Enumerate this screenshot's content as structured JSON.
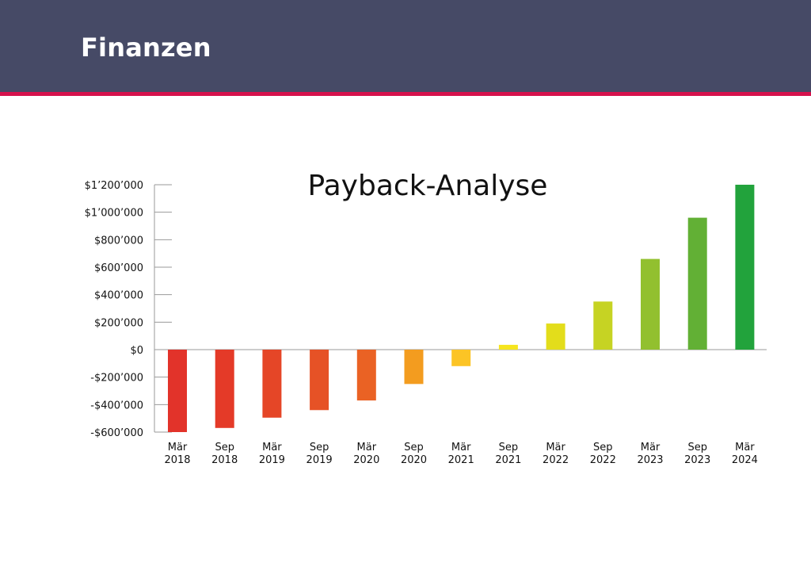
{
  "header": {
    "title": "Finanzen",
    "background_color": "#464a66",
    "accent_color": "#d5114c"
  },
  "chart_data": {
    "type": "bar",
    "title": "Payback-Analyse",
    "xlabel": "",
    "ylabel": "",
    "ylim": [
      -600000,
      1200000
    ],
    "yticks": [
      1200000,
      1000000,
      800000,
      600000,
      400000,
      200000,
      0,
      -200000,
      -400000,
      -600000
    ],
    "ytick_labels": [
      "$1’200’000",
      "$1’000’000",
      "$800’000",
      "$600’000",
      "$400’000",
      "$200’000",
      "$0",
      "-$200’000",
      "-$400’000",
      "-$600’000"
    ],
    "grid": false,
    "categories": [
      [
        "Mär",
        "2018"
      ],
      [
        "Sep",
        "2018"
      ],
      [
        "Mär",
        "2019"
      ],
      [
        "Sep",
        "2019"
      ],
      [
        "Mär",
        "2020"
      ],
      [
        "Sep",
        "2020"
      ],
      [
        "Mär",
        "2021"
      ],
      [
        "Sep",
        "2021"
      ],
      [
        "Mär",
        "2022"
      ],
      [
        "Sep",
        "2022"
      ],
      [
        "Mär",
        "2023"
      ],
      [
        "Sep",
        "2023"
      ],
      [
        "Mär",
        "2024"
      ]
    ],
    "values": [
      -600000,
      -570000,
      -495000,
      -440000,
      -370000,
      -250000,
      -120000,
      35000,
      190000,
      350000,
      660000,
      960000,
      1200000
    ],
    "bar_colors": [
      "#e2332a",
      "#e43a28",
      "#e54627",
      "#e65226",
      "#ea6224",
      "#f39c1f",
      "#fcc425",
      "#f6e51f",
      "#e3dd1b",
      "#c6d323",
      "#92c02f",
      "#62b035",
      "#22a33c"
    ]
  }
}
